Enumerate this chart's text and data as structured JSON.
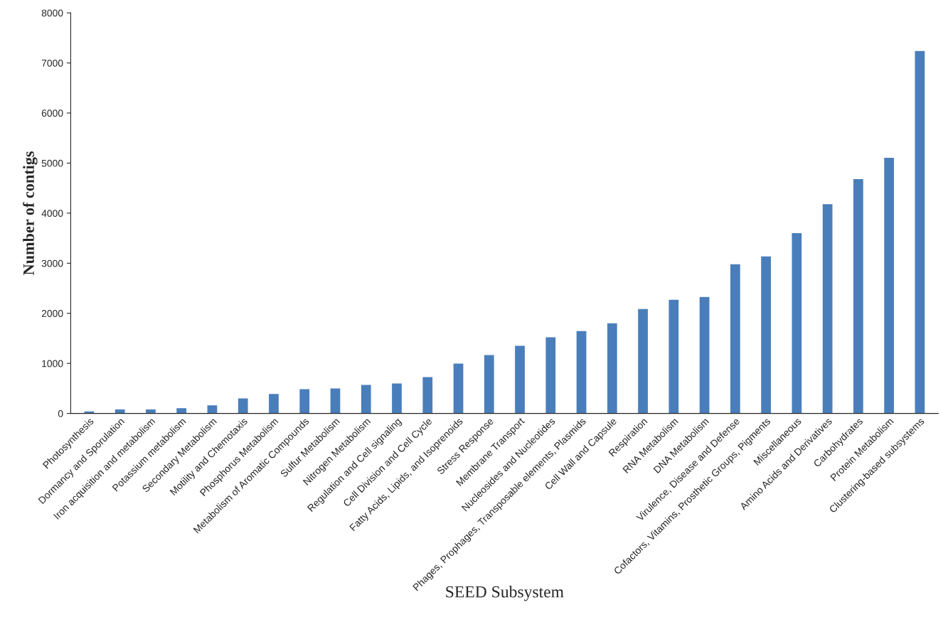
{
  "chart_data": {
    "type": "bar",
    "xlabel": "SEED Subsystem",
    "ylabel": "Number of contigs",
    "categories": [
      "Photosynthesis",
      "Dormancy and Sporulation",
      "Iron acquisition and metabolism",
      "Potassium metabolism",
      "Secondary Metabolism",
      "Motility and Chemotaxis",
      "Phosphorus Metabolism",
      "Metabolism of Aromatic Compounds",
      "Sulfur Metabolism",
      "Nitrogen Metabolism",
      "Regulation and Cell signaling",
      "Cell Division and Cell Cycle",
      "Fatty Acids, Lipids, and Isoprenoids",
      "Stress Response",
      "Membrane Transport",
      "Nucleosides and Nucleotides",
      "Phages, Prophages, Transposable elements, Plasmids",
      "Cell Wall and Capsule",
      "Respiration",
      "RNA Metabolism",
      "DNA Metabolism",
      "Virulence, Disease and Defense",
      "Cofactors, Vitamins, Prosthetic Groups, Pigments",
      "Miscellaneous",
      "Amino Acids and Derivatives",
      "Carbohydrates",
      "Protein Metabolism",
      "Clustering-based subsystems"
    ],
    "values": [
      50,
      90,
      90,
      115,
      170,
      310,
      400,
      495,
      510,
      580,
      610,
      735,
      1005,
      1175,
      1360,
      1530,
      1655,
      1810,
      2095,
      2280,
      2335,
      2990,
      3145,
      3610,
      4190,
      4690,
      5115,
      7250
    ],
    "color": "#4a7ebb",
    "ylim": [
      0,
      8000
    ],
    "yticks": [
      0,
      1000,
      2000,
      3000,
      4000,
      5000,
      6000,
      7000,
      8000
    ],
    "grid": false,
    "legend": false
  }
}
